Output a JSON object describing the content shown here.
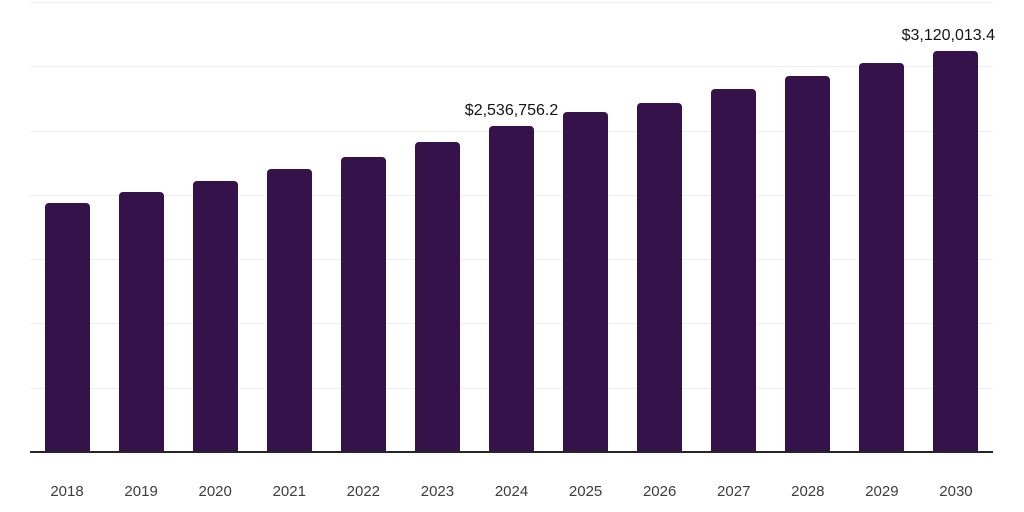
{
  "chart_data": {
    "type": "bar",
    "title": "",
    "xlabel": "",
    "ylabel": "",
    "categories": [
      "2018",
      "2019",
      "2020",
      "2021",
      "2022",
      "2023",
      "2024",
      "2025",
      "2026",
      "2027",
      "2028",
      "2029",
      "2030"
    ],
    "values": [
      1938000,
      2023000,
      2108000,
      2200000,
      2298000,
      2408000,
      2536756.2,
      2646000,
      2715000,
      2825000,
      2921000,
      3023000,
      3120013.4
    ],
    "value_labels": {
      "2024": "$2,536,756.2",
      "2030": "$3,120,013.4"
    },
    "ylim": [
      0,
      3500000
    ],
    "ytick_interval": 500000,
    "grid": "horizontal",
    "y_axis_tick_labels_visible": false,
    "legend": "none",
    "colors": {
      "bar": "#36124B",
      "axis": "#262626",
      "gridline": "#EFEFF1",
      "x_labels": "#3D3D3D",
      "value_labels": "#141414",
      "background": "#FFFFFF"
    }
  }
}
